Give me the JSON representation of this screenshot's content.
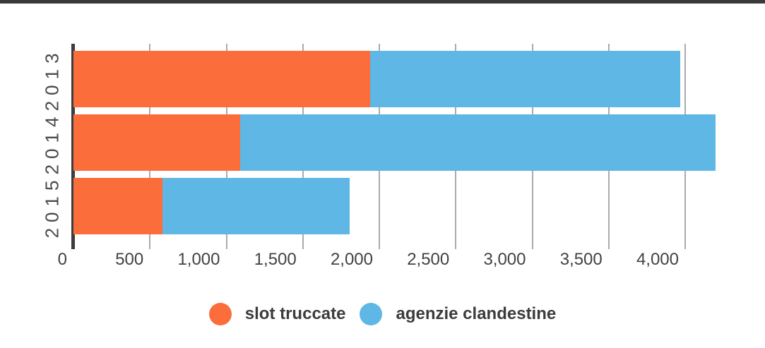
{
  "window": {
    "top_bar_color": "#3a3a3a"
  },
  "chart_data": {
    "type": "bar",
    "orientation": "horizontal",
    "stacked": true,
    "title": "",
    "categories": [
      "2013",
      "2014",
      "2015"
    ],
    "series": [
      {
        "name": "slot truccate",
        "color": "#fc6d3c",
        "values": [
          1940,
          1090,
          580
        ]
      },
      {
        "name": "agenzie clandestine",
        "color": "#5fb7e5",
        "values": [
          2030,
          3110,
          1225
        ]
      }
    ],
    "x_ticks": [
      0,
      500,
      1000,
      1500,
      2000,
      2500,
      3000,
      3500,
      4000
    ],
    "x_tick_labels": [
      "0",
      "500",
      "1,000",
      "1,500",
      "2,000",
      "2,500",
      "3,000",
      "3,500",
      "4,000"
    ],
    "xlim": [
      0,
      4520
    ],
    "grid": "vertical-gridlines",
    "gridline_color": "#ababab",
    "axis_color": "#3d3d3d",
    "legend_position": "bottom"
  }
}
